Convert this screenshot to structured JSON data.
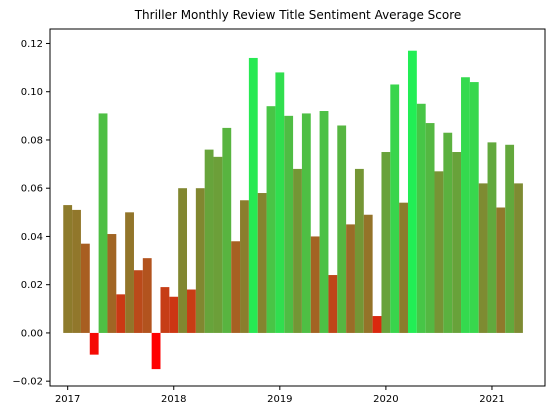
{
  "chart_data": {
    "type": "bar",
    "title": "Thriller Monthly Review Title Sentiment Average Score",
    "xlabel": "",
    "ylabel": "",
    "x_ticks": [
      "2017",
      "2018",
      "2019",
      "2020",
      "2021"
    ],
    "y_ticks": [
      "−0.02",
      "0.00",
      "0.02",
      "0.04",
      "0.06",
      "0.08",
      "0.10",
      "0.12"
    ],
    "ylim": [
      -0.022,
      0.126
    ],
    "x_range_months": [
      "2016-11",
      "2021-07"
    ],
    "grid": false,
    "legend": "none",
    "color_scale": {
      "low": "#ff0000",
      "high": "#22ee55",
      "min": -0.015,
      "max": 0.117
    },
    "series": [
      {
        "months": [
          "2017-01",
          "2017-02",
          "2017-03",
          "2017-04",
          "2017-05",
          "2017-06",
          "2017-07",
          "2017-08",
          "2017-09",
          "2017-10",
          "2017-11",
          "2017-12",
          "2018-01",
          "2018-02",
          "2018-03",
          "2018-04",
          "2018-05",
          "2018-06",
          "2018-07",
          "2018-08",
          "2018-09",
          "2018-10",
          "2018-11",
          "2018-12",
          "2019-01",
          "2019-02",
          "2019-03",
          "2019-04",
          "2019-05",
          "2019-06",
          "2019-07",
          "2019-08",
          "2019-09",
          "2019-10",
          "2019-11",
          "2019-12",
          "2020-01",
          "2020-02",
          "2020-03",
          "2020-04",
          "2020-05",
          "2020-06",
          "2020-07",
          "2020-08",
          "2020-09",
          "2020-10",
          "2020-11",
          "2020-12",
          "2021-01",
          "2021-02",
          "2021-03",
          "2021-04"
        ],
        "values": [
          0.053,
          0.051,
          0.037,
          -0.009,
          0.091,
          0.041,
          0.016,
          0.05,
          0.026,
          0.031,
          -0.015,
          0.019,
          0.015,
          0.06,
          0.018,
          0.06,
          0.076,
          0.073,
          0.085,
          0.038,
          0.055,
          0.114,
          0.058,
          0.094,
          0.108,
          0.09,
          0.068,
          0.091,
          0.04,
          0.092,
          0.024,
          0.086,
          0.045,
          0.068,
          0.049,
          0.007,
          0.075,
          0.103,
          0.054,
          0.117,
          0.095,
          0.087,
          0.067,
          0.083,
          0.075,
          0.106,
          0.104,
          0.062,
          0.079,
          0.052,
          0.078,
          0.062
        ]
      }
    ]
  }
}
